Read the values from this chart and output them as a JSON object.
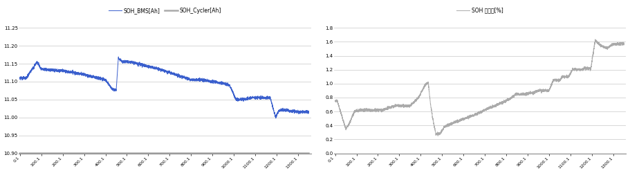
{
  "left_legend": [
    "SOH_BMS[Ah]",
    "SOH_Cycler[Ah]"
  ],
  "left_legend_colors": [
    "#3a5fcd",
    "#aaaaaa"
  ],
  "right_legend": [
    "SOH 오차율[%]"
  ],
  "left_ylim": [
    10.9,
    11.25
  ],
  "left_yticks": [
    10.9,
    10.95,
    11.0,
    11.05,
    11.1,
    11.15,
    11.2,
    11.25
  ],
  "right_ylim": [
    0,
    1.8
  ],
  "right_yticks": [
    0,
    0.2,
    0.4,
    0.6,
    0.8,
    1.0,
    1.2,
    1.4,
    1.6,
    1.8
  ],
  "xtick_labels": [
    "0.1",
    "100.1",
    "200.1",
    "300.1",
    "400.1",
    "500.1",
    "600.1",
    "700.1",
    "800.1",
    "900.1",
    "1000.1",
    "1100.1",
    "1200.1",
    "1300.1"
  ],
  "xtick_values": [
    0,
    100,
    200,
    300,
    400,
    500,
    600,
    700,
    800,
    900,
    1000,
    1100,
    1200,
    1300
  ],
  "cycler_value": 10.9,
  "background_color": "#ffffff",
  "grid_color": "#c8c8c8",
  "bms_color": "#3a5fcd",
  "cycler_color": "#aaaaaa",
  "error_color": "#aaaaaa"
}
